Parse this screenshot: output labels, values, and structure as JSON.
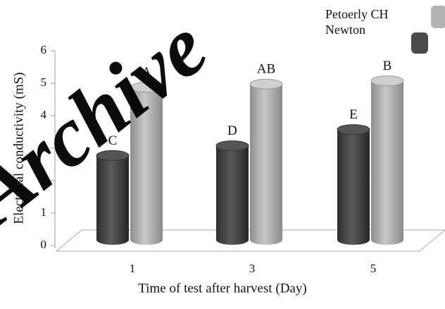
{
  "chart_data": {
    "type": "bar3d",
    "watermark": "Archive",
    "xlabel": "Time of test after harvest (Day)",
    "ylabel": "Electrical conductivity (mS)",
    "categories": [
      "1",
      "3",
      "5"
    ],
    "series": [
      {
        "name": "Newton",
        "color": "#4a4a4a",
        "values": [
          2.6,
          2.9,
          3.4
        ],
        "letters": [
          "C",
          "D",
          "E"
        ]
      },
      {
        "name": "Petoerly CH",
        "color": "#b4b4b4",
        "values": [
          4.7,
          4.8,
          4.9
        ],
        "letters": [
          "A",
          "AB",
          "B"
        ]
      }
    ],
    "ylim": [
      0,
      6
    ],
    "yticks": [
      0,
      1,
      2,
      3,
      4,
      5,
      6
    ]
  }
}
